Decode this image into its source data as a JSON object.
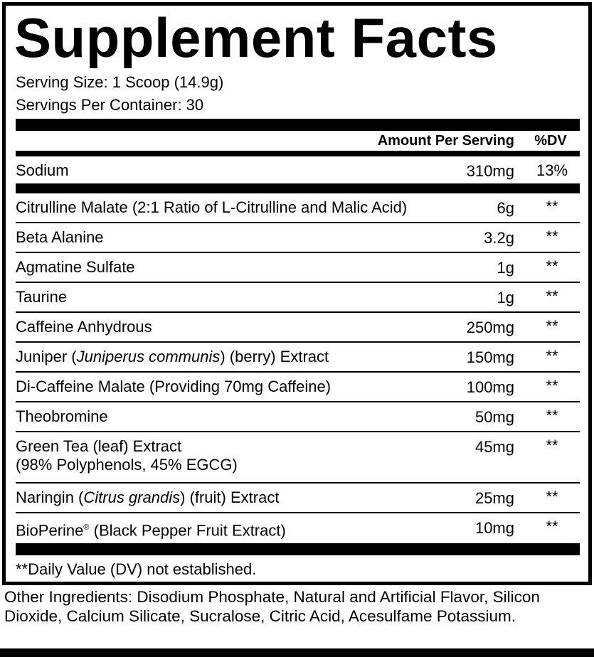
{
  "title": "Supplement Facts",
  "serving_size": "Serving Size: 1 Scoop (14.9g)",
  "servings_per_container": "Servings Per Container: 30",
  "header": {
    "amount": "Amount Per Serving",
    "dv": "%DV"
  },
  "sodium": {
    "name": "Sodium",
    "amount": "310mg",
    "dv": "13%"
  },
  "ingredients": [
    {
      "name": "Citrulline Malate (2:1 Ratio of L-Citrulline and Malic Acid)",
      "amount": "6g",
      "dv": "**"
    },
    {
      "name": "Beta Alanine",
      "amount": "3.2g",
      "dv": "**"
    },
    {
      "name": "Agmatine Sulfate",
      "amount": "1g",
      "dv": "**"
    },
    {
      "name": "Taurine",
      "amount": "1g",
      "dv": "**"
    },
    {
      "name": "Caffeine Anhydrous",
      "amount": "250mg",
      "dv": "**"
    },
    {
      "name": "Juniper (",
      "italic": "Juniperus communis",
      "post": ") (berry) Extract",
      "amount": "150mg",
      "dv": "**"
    },
    {
      "name": "Di-Caffeine Malate (Providing 70mg Caffeine)",
      "amount": "100mg",
      "dv": "**"
    },
    {
      "name": "Theobromine",
      "amount": "50mg",
      "dv": "**"
    },
    {
      "name": "Green Tea (leaf) Extract",
      "line2": "(98% Polyphenols, 45% EGCG)",
      "amount": "45mg",
      "dv": "**"
    },
    {
      "name": "Naringin (",
      "italic": "Citrus grandis",
      "post": ") (fruit) Extract",
      "amount": "25mg",
      "dv": "**"
    },
    {
      "name": "BioPerine",
      "sup": "®",
      "post": " (Black Pepper Fruit Extract)",
      "amount": "10mg",
      "dv": "**"
    }
  ],
  "footnote": "**Daily Value (DV) not established.",
  "other_ingredients": "Other Ingredients: Disodium Phosphate, Natural and Artificial Flavor, Silicon Dioxide, Calcium Silicate, Sucralose, Citric Acid, Acesulfame Potassium."
}
